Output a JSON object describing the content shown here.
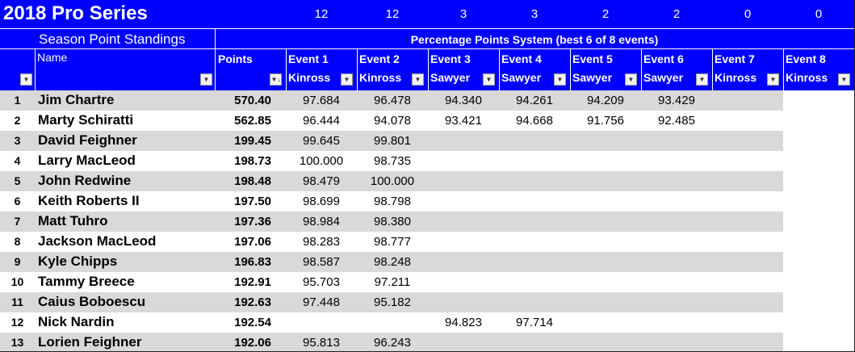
{
  "header": {
    "title": "2018 Pro Series",
    "event_counts": [
      "12",
      "12",
      "3",
      "3",
      "2",
      "2",
      "0",
      "0"
    ],
    "subtitle": "Season Point Standings",
    "system": "Percentage Points System (best 6 of 8 events)"
  },
  "columns": {
    "name": "Name",
    "points": "Points",
    "events": [
      {
        "name": "Event 1",
        "venue": "Kinross"
      },
      {
        "name": "Event 2",
        "venue": "Kinross"
      },
      {
        "name": "Event 3",
        "venue": "Sawyer"
      },
      {
        "name": "Event 4",
        "venue": "Sawyer"
      },
      {
        "name": "Event 5",
        "venue": "Sawyer"
      },
      {
        "name": "Event 6",
        "venue": "Sawyer"
      },
      {
        "name": "Event 7",
        "venue": "Kinross"
      },
      {
        "name": "Event 8",
        "venue": "Kinross"
      }
    ]
  },
  "rows": [
    {
      "rank": "1",
      "name": "Jim Chartre",
      "points": "570.40",
      "events": [
        "97.684",
        "96.478",
        "94.340",
        "94.261",
        "94.209",
        "93.429",
        null,
        null
      ]
    },
    {
      "rank": "2",
      "name": "Marty Schiratti",
      "points": "562.85",
      "events": [
        "96.444",
        "94.078",
        "93.421",
        "94.668",
        "91.756",
        "92.485",
        null,
        null
      ]
    },
    {
      "rank": "3",
      "name": "David Feighner",
      "points": "199.45",
      "events": [
        "99.645",
        "99.801",
        null,
        null,
        null,
        null,
        null,
        null
      ]
    },
    {
      "rank": "4",
      "name": "Larry MacLeod",
      "points": "198.73",
      "events": [
        "100.000",
        "98.735",
        null,
        null,
        null,
        null,
        null,
        null
      ]
    },
    {
      "rank": "5",
      "name": "John Redwine",
      "points": "198.48",
      "events": [
        "98.479",
        "100.000",
        null,
        null,
        null,
        null,
        null,
        null
      ]
    },
    {
      "rank": "6",
      "name": "Keith Roberts II",
      "points": "197.50",
      "events": [
        "98.699",
        "98.798",
        null,
        null,
        null,
        null,
        null,
        null
      ]
    },
    {
      "rank": "7",
      "name": "Matt Tuhro",
      "points": "197.36",
      "events": [
        "98.984",
        "98.380",
        null,
        null,
        null,
        null,
        null,
        null
      ]
    },
    {
      "rank": "8",
      "name": "Jackson MacLeod",
      "points": "197.06",
      "events": [
        "98.283",
        "98.777",
        null,
        null,
        null,
        null,
        null,
        null
      ]
    },
    {
      "rank": "9",
      "name": "Kyle Chipps",
      "points": "196.83",
      "events": [
        "98.587",
        "98.248",
        null,
        null,
        null,
        null,
        null,
        null
      ]
    },
    {
      "rank": "10",
      "name": "Tammy Breece",
      "points": "192.91",
      "events": [
        "95.703",
        "97.211",
        null,
        null,
        null,
        null,
        null,
        null
      ]
    },
    {
      "rank": "11",
      "name": "Caius Boboescu",
      "points": "192.63",
      "events": [
        "97.448",
        "95.182",
        null,
        null,
        null,
        null,
        null,
        null
      ]
    },
    {
      "rank": "12",
      "name": "Nick Nardin",
      "points": "192.54",
      "events": [
        null,
        null,
        "94.823",
        "97.714",
        null,
        null,
        null,
        null
      ]
    },
    {
      "rank": "13",
      "name": "Lorien Feighner",
      "points": "192.06",
      "events": [
        "95.813",
        "96.243",
        null,
        null,
        null,
        null,
        null,
        null
      ]
    }
  ]
}
